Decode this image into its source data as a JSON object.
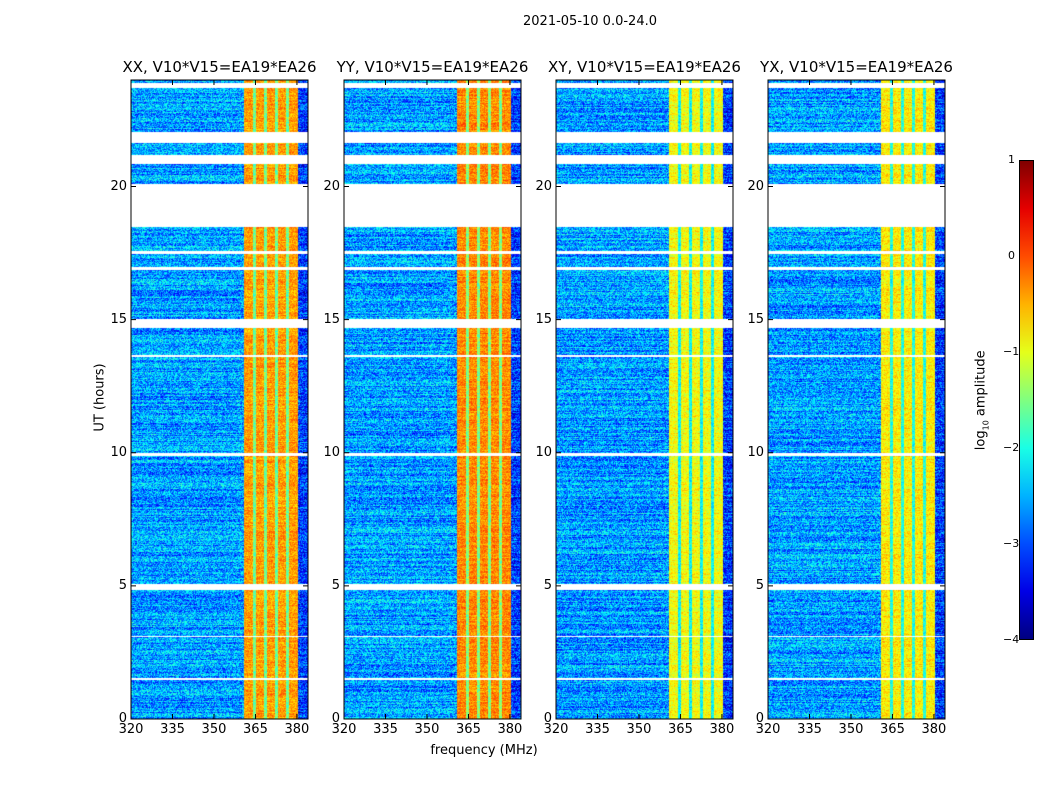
{
  "figure_title": "2021-05-10 0.0-24.0",
  "chart_data": {
    "type": "heatmap",
    "xlabel": "frequency (MHz)",
    "ylabel": "UT (hours)",
    "xlim": [
      320,
      384
    ],
    "ylim": [
      0,
      24
    ],
    "xticks": [
      "320",
      "335",
      "350",
      "365",
      "380"
    ],
    "yticks": [
      "0",
      "5",
      "10",
      "15",
      "20"
    ],
    "panels": [
      {
        "title": "XX, V10*V15=EA19*EA26",
        "band_level": -0.4
      },
      {
        "title": "YY, V10*V15=EA19*EA26",
        "band_level": -0.3
      },
      {
        "title": "XY, V10*V15=EA19*EA26",
        "band_level": -0.9
      },
      {
        "title": "YX, V10*V15=EA19*EA26",
        "band_level": -0.8
      }
    ],
    "background_level": -2.6,
    "high_band_mhz": [
      360.5,
      380.3
    ],
    "subband_edges_mhz": [
      364.5,
      368.5,
      372.5,
      376.5
    ],
    "flagged_hours": [
      [
        23.7,
        23.9
      ],
      [
        21.67,
        22.05
      ],
      [
        20.88,
        21.2
      ],
      [
        18.5,
        20.13
      ],
      [
        14.72,
        15.06
      ],
      [
        4.85,
        5.1
      ],
      [
        17.5,
        17.6
      ],
      [
        16.9,
        17.0
      ],
      [
        13.6,
        13.7
      ],
      [
        9.9,
        10.0
      ],
      [
        3.1,
        3.15
      ],
      [
        1.5,
        1.55
      ]
    ],
    "colorbar": {
      "label": "log10 amplitude",
      "label_main": "log",
      "label_sub": "10",
      "label_rest": " amplitude",
      "range": [
        -4,
        1
      ],
      "ticks": [
        "1",
        "0",
        "−1",
        "−2",
        "−3",
        "−4"
      ],
      "colormap": "jet"
    }
  }
}
